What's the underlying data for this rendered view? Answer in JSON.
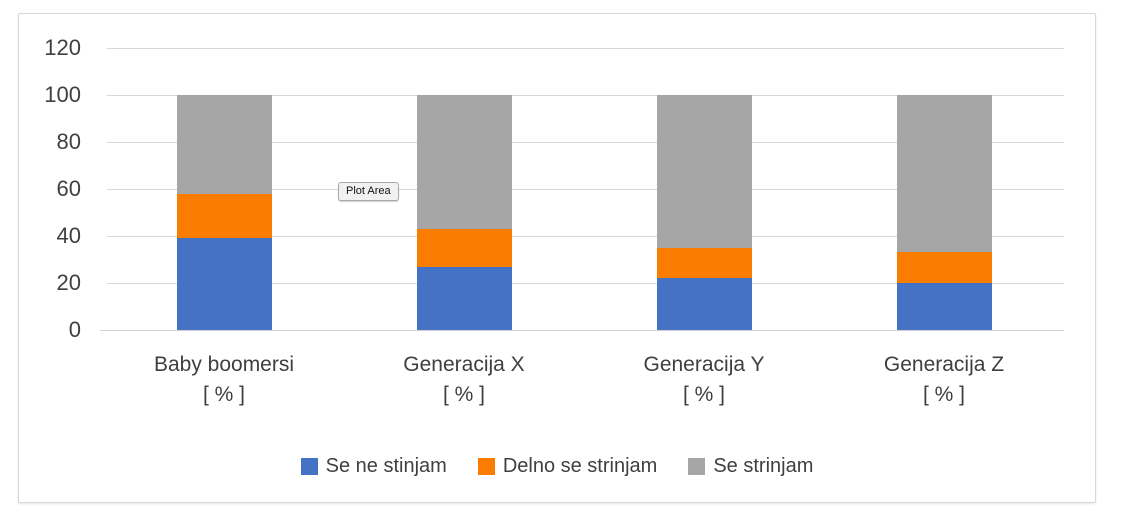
{
  "chart_data": {
    "type": "bar",
    "stacked": true,
    "title": "",
    "categories": [
      "Baby boomersi",
      "Generacija X",
      "Generacija Y",
      "Generacija Z"
    ],
    "category_suffix": "[ % ]",
    "series": [
      {
        "name": "Se ne stinjam",
        "color": "#4472C4",
        "values": [
          39,
          27,
          22,
          20
        ]
      },
      {
        "name": "Delno se strinjam",
        "color": "#FA7D02",
        "values": [
          19,
          16,
          13,
          13
        ]
      },
      {
        "name": "Se strinjam",
        "color": "#A6A6A6",
        "values": [
          42,
          57,
          65,
          67
        ]
      }
    ],
    "ylim": [
      0,
      120
    ],
    "yticks": [
      0,
      20,
      40,
      60,
      80,
      100,
      120
    ],
    "grid": true,
    "legend_position": "bottom",
    "gridline_color": "#D9D9D9",
    "axis_text_color": "#404040"
  },
  "tooltip": {
    "label": "Plot Area"
  }
}
